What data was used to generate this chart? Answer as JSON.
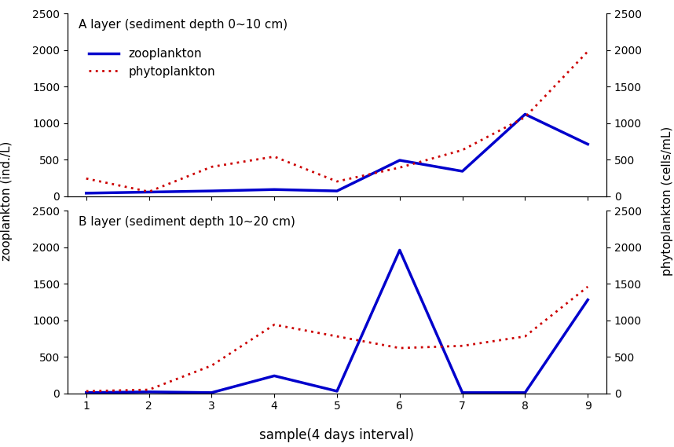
{
  "x": [
    1,
    2,
    3,
    4,
    5,
    6,
    7,
    8,
    9
  ],
  "panel_A": {
    "title": "A layer (sediment depth 0~10 cm)",
    "zoo": [
      40,
      55,
      70,
      90,
      70,
      490,
      340,
      1120,
      710
    ],
    "phyto": [
      240,
      60,
      400,
      540,
      200,
      390,
      630,
      1080,
      1980
    ]
  },
  "panel_B": {
    "title": "B layer (sediment depth 10~20 cm)",
    "zoo": [
      10,
      20,
      10,
      240,
      30,
      1960,
      10,
      10,
      1280
    ],
    "phyto": [
      30,
      50,
      380,
      940,
      780,
      620,
      650,
      780,
      1460
    ]
  },
  "zoo_color": "#0000cc",
  "phyto_color": "#cc0000",
  "zoo_linewidth": 2.5,
  "phyto_linewidth": 2.0,
  "zoo_linestyle": "-",
  "phyto_linestyle": ":",
  "ylim": [
    0,
    2500
  ],
  "xlabel": "sample(4 days interval)",
  "ylabel_left": "zooplankton (ind./L)",
  "ylabel_right": "phytoplankton (cells/mL)",
  "legend_zoo": "zooplankton",
  "legend_phyto": "phytoplankton",
  "xticks": [
    1,
    2,
    3,
    4,
    5,
    6,
    7,
    8,
    9
  ],
  "yticks": [
    0,
    500,
    1000,
    1500,
    2000,
    2500
  ]
}
